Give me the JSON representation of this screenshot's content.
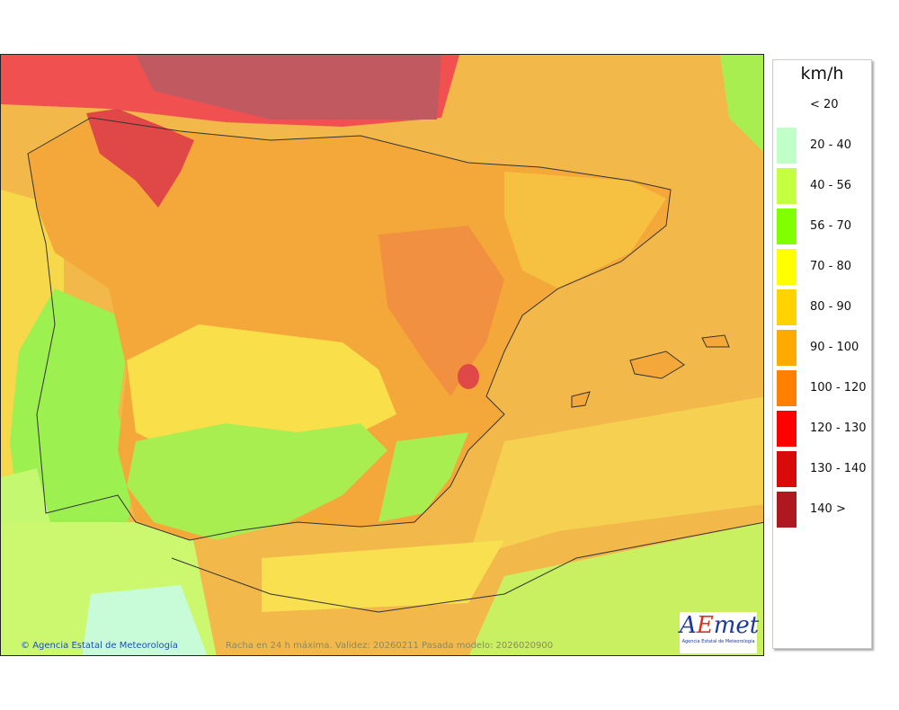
{
  "map": {
    "credit": "Agencia Estatal de Meteorología",
    "copyright_symbol": "©",
    "caption": "Racha en 24 h máxima. Validez: 20260211 Pasada modelo: 2026020900",
    "logo": {
      "text": "AEmet",
      "subtitle": "Agencia Estatal de Meteorología"
    }
  },
  "legend": {
    "title": "km/h",
    "items": [
      {
        "label": "< 20",
        "color": null
      },
      {
        "label": "20 - 40",
        "color": "#c0ffc8"
      },
      {
        "label": "40 - 56",
        "color": "#c4ff40"
      },
      {
        "label": "56 - 70",
        "color": "#80ff00"
      },
      {
        "label": "70 - 80",
        "color": "#ffff00"
      },
      {
        "label": "80 - 90",
        "color": "#ffd200"
      },
      {
        "label": "90 - 100",
        "color": "#ffaa00"
      },
      {
        "label": "100 - 120",
        "color": "#ff8000"
      },
      {
        "label": "120 - 130",
        "color": "#ff0000"
      },
      {
        "label": "130 - 140",
        "color": "#d80a0a"
      },
      {
        "label": "140 >",
        "color": "#b01820"
      }
    ]
  }
}
